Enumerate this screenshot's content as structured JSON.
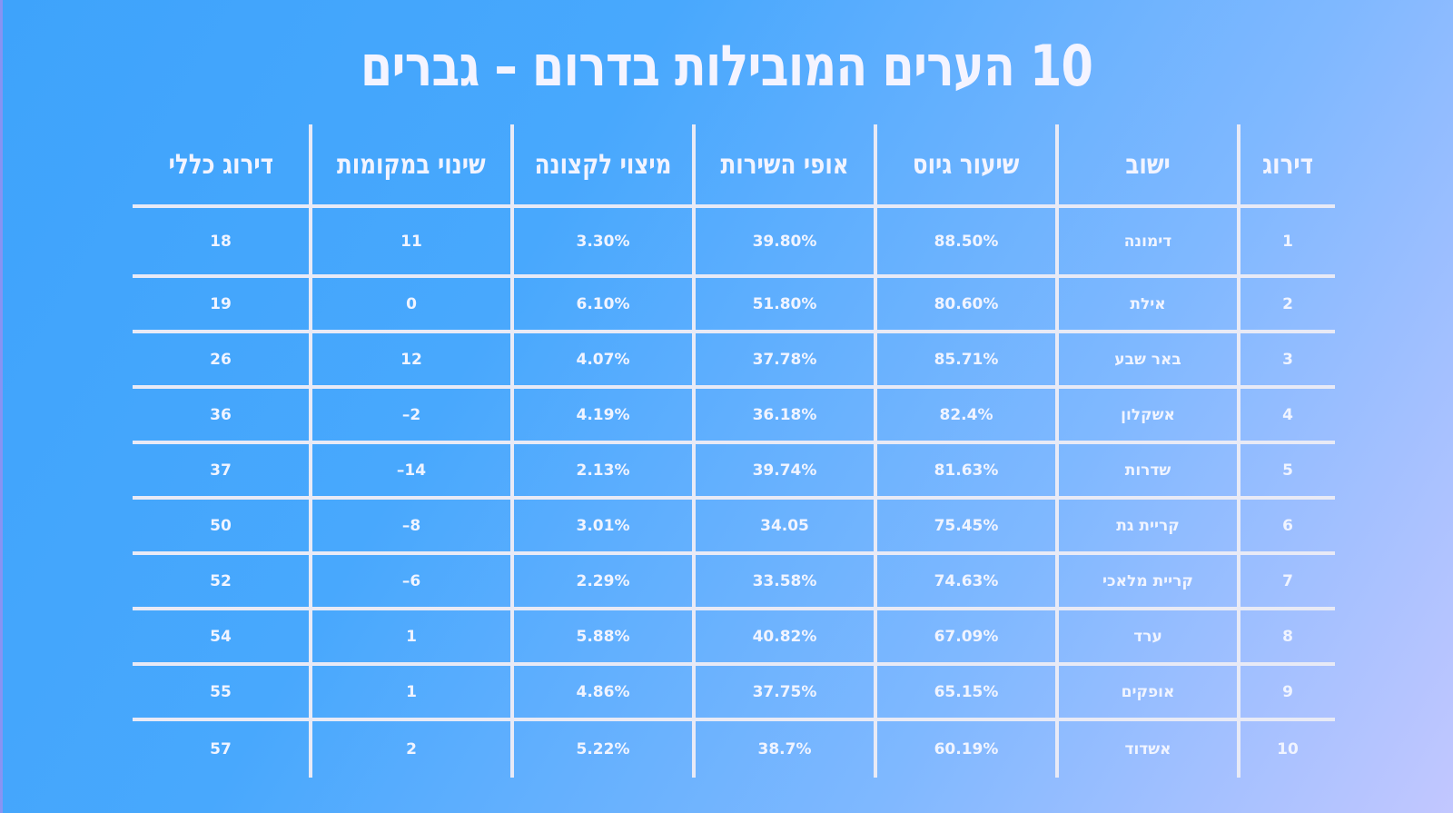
{
  "title": "10 הערים המובילות בדרום – גברים",
  "table": {
    "headers": [
      "דירוג",
      "ישוב",
      "שיעור גיוס",
      "אופי השירות",
      "מיצוי לקצונה",
      "שינוי במקומות",
      "דירוג כללי"
    ],
    "rows": [
      [
        "1",
        "דימונה",
        "88.50%",
        "39.80%",
        "3.30%",
        "11",
        "18"
      ],
      [
        "2",
        "אילת",
        "80.60%",
        "51.80%",
        "6.10%",
        "0",
        "19"
      ],
      [
        "3",
        "באר שבע",
        "85.71%",
        "37.78%",
        "4.07%",
        "12",
        "26"
      ],
      [
        "4",
        "אשקלון",
        "82.4%",
        "36.18%",
        "4.19%",
        "2–",
        "36"
      ],
      [
        "5",
        "שדרות",
        "81.63%",
        "39.74%",
        "2.13%",
        "14–",
        "37"
      ],
      [
        "6",
        "קריית גת",
        "75.45%",
        "34.05",
        "3.01%",
        "8–",
        "50"
      ],
      [
        "7",
        "קריית מלאכי",
        "74.63%",
        "33.58%",
        "2.29%",
        "6–",
        "52"
      ],
      [
        "8",
        "ערד",
        "67.09%",
        "40.82%",
        "5.88%",
        "1",
        "54"
      ],
      [
        "9",
        "אופקים",
        "65.15%",
        "37.75%",
        "4.86%",
        "1",
        "55"
      ],
      [
        "10",
        "אשדוד",
        "60.19%",
        "38.7%",
        "5.22%",
        "2",
        "57"
      ]
    ]
  },
  "colors": {
    "background_start": "#3ea3fb",
    "background_end": "#c2c7ff",
    "grid_lines": "#e8eaf6",
    "text": "#ffffff"
  }
}
